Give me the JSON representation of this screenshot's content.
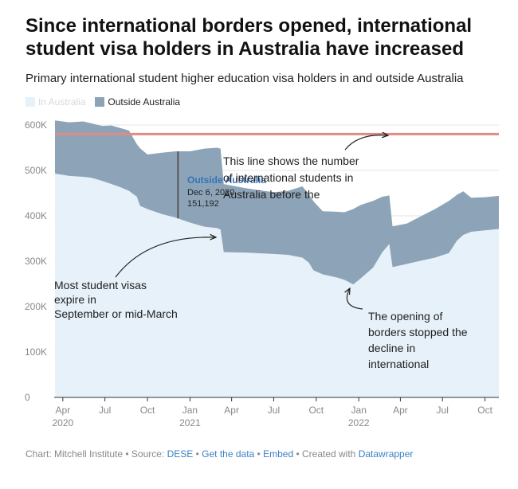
{
  "header": {
    "title": "Since international borders opened, international student visa holders in Australia have increased",
    "subtitle": "Primary international student higher education visa holders in and outside Australia"
  },
  "legend": {
    "in_label": "In Australia",
    "out_label": "Outside Australia"
  },
  "footer": {
    "prefix": "Chart: Mitchell Institute • Source: ",
    "source_link": "DESE",
    "sep1": " • ",
    "get_data": "Get the data",
    "sep2": " • ",
    "embed": "Embed",
    "created": " • Created with ",
    "tool": "Datawrapper"
  },
  "colors": {
    "in_australia": "#e6f1f9",
    "outside_australia": "#8da4b8",
    "reference_line": "#e08c83",
    "axis_text": "#888888",
    "grid": "#e4e4e4"
  },
  "chart_data": {
    "type": "area",
    "stacked": true,
    "title": "Since international borders opened, international student visa holders in Australia have increased",
    "subtitle": "Primary international student higher education visa holders in and outside Australia",
    "xlabel": "",
    "ylabel": "",
    "ylim": [
      0,
      600000
    ],
    "xlim": [
      "2020-03-15",
      "2022-10-31"
    ],
    "y_ticks": [
      {
        "value": 0,
        "label": "0"
      },
      {
        "value": 100000,
        "label": "100K"
      },
      {
        "value": 200000,
        "label": "200K"
      },
      {
        "value": 300000,
        "label": "300K"
      },
      {
        "value": 400000,
        "label": "400K"
      },
      {
        "value": 500000,
        "label": "500K"
      },
      {
        "value": 600000,
        "label": "600K"
      }
    ],
    "x_ticks": [
      {
        "date": "2020-04-01",
        "label": "Apr",
        "year": "2020"
      },
      {
        "date": "2020-07-01",
        "label": "Jul",
        "year": ""
      },
      {
        "date": "2020-10-01",
        "label": "Oct",
        "year": ""
      },
      {
        "date": "2021-01-01",
        "label": "Jan",
        "year": "2021"
      },
      {
        "date": "2021-04-01",
        "label": "Apr",
        "year": ""
      },
      {
        "date": "2021-07-01",
        "label": "Jul",
        "year": ""
      },
      {
        "date": "2021-10-01",
        "label": "Oct",
        "year": ""
      },
      {
        "date": "2022-01-01",
        "label": "Jan",
        "year": "2022"
      },
      {
        "date": "2022-04-01",
        "label": "Apr",
        "year": ""
      },
      {
        "date": "2022-07-01",
        "label": "Jul",
        "year": ""
      },
      {
        "date": "2022-10-01",
        "label": "Oct",
        "year": ""
      }
    ],
    "grid": true,
    "legend_position": "top-left",
    "series": [
      {
        "name": "In Australia",
        "points": [
          [
            "2020-03-15",
            493000
          ],
          [
            "2020-04-15",
            488000
          ],
          [
            "2020-05-15",
            486000
          ],
          [
            "2020-06-01",
            484000
          ],
          [
            "2020-06-25",
            477000
          ],
          [
            "2020-07-15",
            470000
          ],
          [
            "2020-08-01",
            464000
          ],
          [
            "2020-08-22",
            455000
          ],
          [
            "2020-09-08",
            442000
          ],
          [
            "2020-09-15",
            422000
          ],
          [
            "2020-10-01",
            415000
          ],
          [
            "2020-11-01",
            404000
          ],
          [
            "2020-12-01",
            396000
          ],
          [
            "2021-01-01",
            385000
          ],
          [
            "2021-02-01",
            376000
          ],
          [
            "2021-02-28",
            373000
          ],
          [
            "2021-03-08",
            370000
          ],
          [
            "2021-03-15",
            320000
          ],
          [
            "2021-05-01",
            319000
          ],
          [
            "2021-07-01",
            316000
          ],
          [
            "2021-08-01",
            314000
          ],
          [
            "2021-09-01",
            308000
          ],
          [
            "2021-09-15",
            297000
          ],
          [
            "2021-09-25",
            280000
          ],
          [
            "2021-10-15",
            271000
          ],
          [
            "2021-11-15",
            264000
          ],
          [
            "2021-12-01",
            259000
          ],
          [
            "2021-12-20",
            249000
          ],
          [
            "2022-01-05",
            262000
          ],
          [
            "2022-02-01",
            286000
          ],
          [
            "2022-02-21",
            320000
          ],
          [
            "2022-03-08",
            338000
          ],
          [
            "2022-03-15",
            287000
          ],
          [
            "2022-04-15",
            294000
          ],
          [
            "2022-05-15",
            301000
          ],
          [
            "2022-06-15",
            308000
          ],
          [
            "2022-07-15",
            318000
          ],
          [
            "2022-08-01",
            345000
          ],
          [
            "2022-08-15",
            358000
          ],
          [
            "2022-09-01",
            365000
          ],
          [
            "2022-10-01",
            368000
          ],
          [
            "2022-10-31",
            371000
          ]
        ]
      },
      {
        "name": "Outside Australia",
        "points": [
          [
            "2020-03-15",
            117000
          ],
          [
            "2020-04-15",
            118000
          ],
          [
            "2020-05-15",
            122000
          ],
          [
            "2020-06-01",
            120000
          ],
          [
            "2020-06-25",
            121000
          ],
          [
            "2020-07-15",
            129000
          ],
          [
            "2020-08-01",
            130000
          ],
          [
            "2020-08-22",
            133000
          ],
          [
            "2020-09-08",
            116000
          ],
          [
            "2020-09-15",
            127000
          ],
          [
            "2020-10-01",
            120000
          ],
          [
            "2020-11-01",
            135000
          ],
          [
            "2020-12-01",
            146000
          ],
          [
            "2021-01-01",
            157000
          ],
          [
            "2021-02-01",
            172000
          ],
          [
            "2021-02-28",
            177000
          ],
          [
            "2021-03-08",
            178000
          ],
          [
            "2021-03-15",
            150000
          ],
          [
            "2021-05-01",
            142000
          ],
          [
            "2021-07-01",
            136000
          ],
          [
            "2021-08-01",
            141000
          ],
          [
            "2021-09-01",
            157000
          ],
          [
            "2021-09-15",
            151000
          ],
          [
            "2021-09-25",
            152000
          ],
          [
            "2021-10-15",
            139000
          ],
          [
            "2021-11-15",
            145000
          ],
          [
            "2021-12-01",
            149000
          ],
          [
            "2021-12-20",
            166000
          ],
          [
            "2022-01-05",
            162000
          ],
          [
            "2022-02-01",
            147000
          ],
          [
            "2022-02-21",
            122000
          ],
          [
            "2022-03-08",
            107000
          ],
          [
            "2022-03-15",
            90000
          ],
          [
            "2022-04-15",
            89000
          ],
          [
            "2022-05-15",
            98000
          ],
          [
            "2022-06-15",
            107000
          ],
          [
            "2022-07-15",
            115000
          ],
          [
            "2022-08-01",
            101000
          ],
          [
            "2022-08-15",
            96000
          ],
          [
            "2022-09-01",
            75000
          ],
          [
            "2022-10-01",
            73000
          ],
          [
            "2022-10-31",
            73000
          ]
        ]
      }
    ],
    "reference_line": {
      "value": 580000,
      "label": "This line shows the number of international students in Australia before the pandemic"
    },
    "annotations": [
      {
        "id": "ref",
        "text": "This line shows the number of international students in Australia before the pandemic"
      },
      {
        "id": "expire",
        "text": "Most student visas expire in September or mid-March"
      },
      {
        "id": "opening",
        "text": "The opening of borders stopped the decline in international students"
      }
    ],
    "tooltip": {
      "series": "Outside Australia",
      "date_label": "Dec 6, 2020",
      "date": "2020-12-06",
      "value_label": "151,192",
      "value": 151192
    }
  }
}
